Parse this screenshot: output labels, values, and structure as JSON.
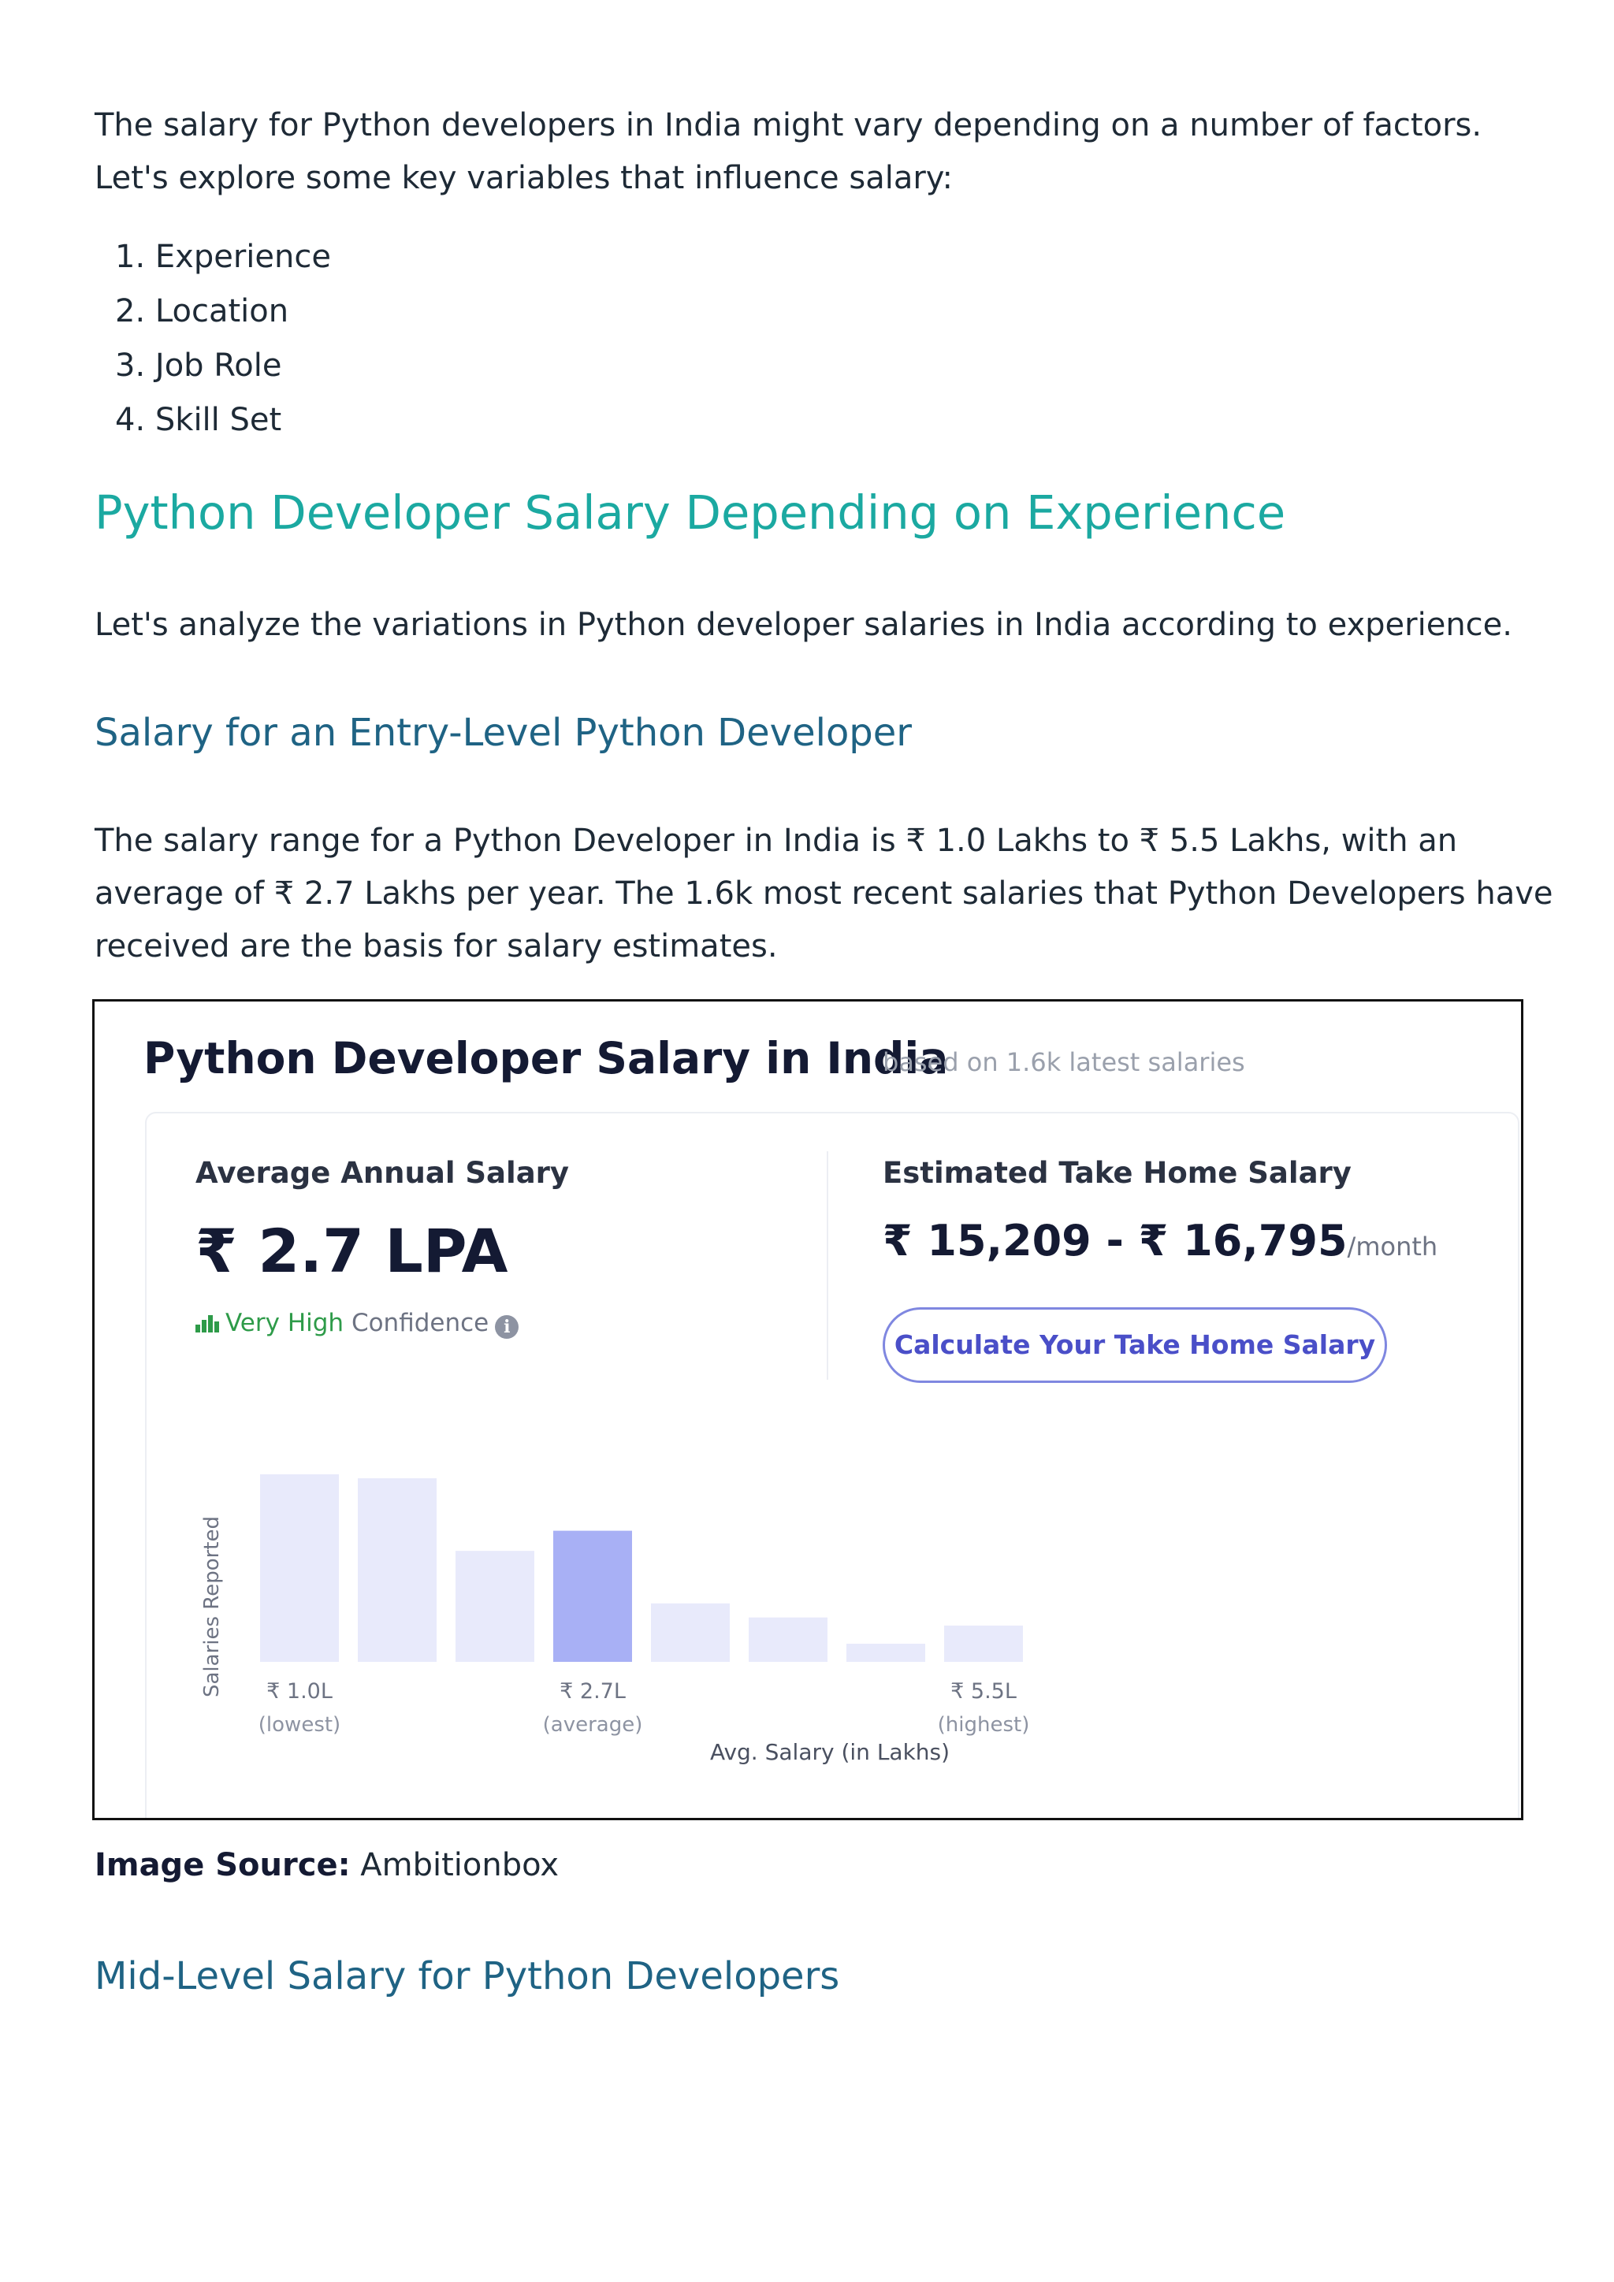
{
  "intro": "The salary for Python developers in India might vary depending on a number of factors. Let's explore some key variables that influence salary:",
  "factors": [
    {
      "num": "1.",
      "label": "Experience"
    },
    {
      "num": "2.",
      "label": "Location"
    },
    {
      "num": "3.",
      "label": "Job Role"
    },
    {
      "num": "4.",
      "label": "Skill Set"
    }
  ],
  "section_heading": "Python Developer Salary Depending on Experience",
  "section_lead": "Let's analyze the variations in Python developer salaries in India according to experience.",
  "entry_heading": "Salary for an Entry-Level Python Developer",
  "entry_text": "The salary range for a Python Developer in India is ₹ 1.0 Lakhs to ₹ 5.5 Lakhs, with an average of ₹ 2.7 Lakhs per year. The 1.6k most recent salaries that Python Developers have received are the basis for salary estimates.",
  "card": {
    "title": "Python Developer Salary in India",
    "subtitle": "based on 1.6k latest salaries",
    "avg_label": "Average Annual Salary",
    "avg_value": "₹ 2.7 LPA",
    "confidence_level": "Very High",
    "confidence_word": "Confidence",
    "info_icon": "i",
    "takehome_label": "Estimated Take Home Salary",
    "takehome_value": "₹ 15,209 - ₹ 16,795",
    "takehome_unit": "/month",
    "calc_button": "Calculate Your Take Home Salary",
    "colors": {
      "bar": "#e8eafb",
      "bar_highlight": "#a8b0f5",
      "confidence": "#2e9b49",
      "button": "#4a4fc8"
    }
  },
  "chart_data": {
    "type": "bar",
    "ylabel": "Salaries Reported",
    "xlabel": "Avg. Salary (in Lakhs)",
    "values": [
      0.93,
      0.91,
      0.55,
      0.65,
      0.29,
      0.22,
      0.09,
      0.18
    ],
    "highlight_index": 3,
    "tick_labels": [
      {
        "index": 0,
        "label": "₹ 1.0L",
        "sub": "(lowest)"
      },
      {
        "index": 3,
        "label": "₹ 2.7L",
        "sub": "(average)"
      },
      {
        "index": 7,
        "label": "₹ 5.5L",
        "sub": "(highest)"
      }
    ],
    "grid": false,
    "legend": "none"
  },
  "source": {
    "label": "Image Source:",
    "value": " Ambitionbox"
  },
  "mid_heading": "Mid-Level Salary for Python Developers"
}
